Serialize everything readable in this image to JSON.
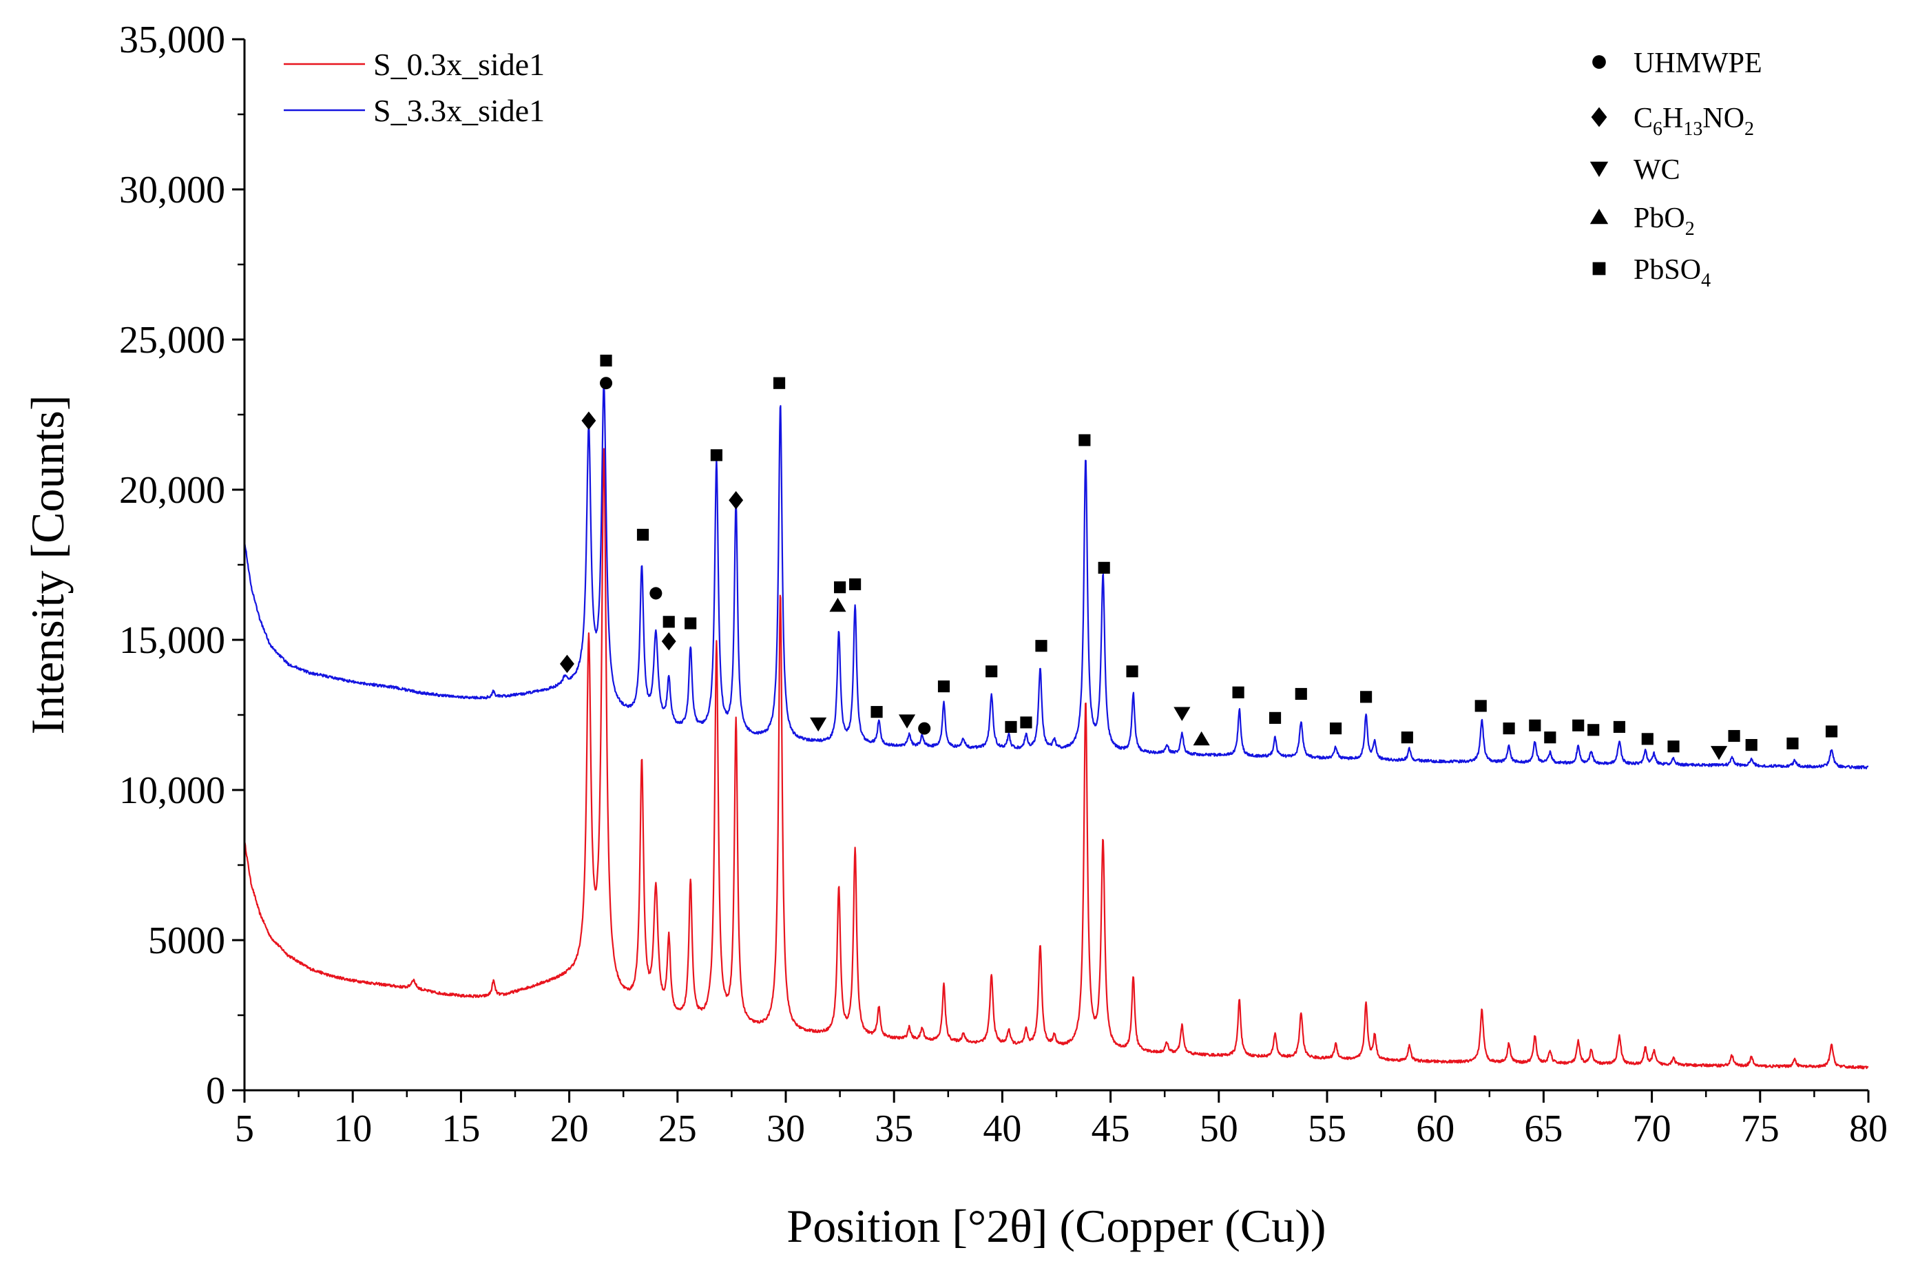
{
  "chart_data": {
    "type": "line",
    "title": "",
    "xlabel": "Position [°2θ] (Copper (Cu))",
    "ylabel": "Intensity [Counts]",
    "xlim": [
      5,
      80
    ],
    "ylim": [
      0,
      35000
    ],
    "x_ticks": [
      5,
      10,
      15,
      20,
      25,
      30,
      35,
      40,
      45,
      50,
      55,
      60,
      65,
      70,
      75,
      80
    ],
    "x_tick_labels": [
      "5",
      "10",
      "15",
      "20",
      "25",
      "30",
      "35",
      "40",
      "45",
      "50",
      "55",
      "60",
      "65",
      "70",
      "75",
      "80"
    ],
    "y_ticks": [
      0,
      5000,
      10000,
      15000,
      20000,
      25000,
      30000,
      35000
    ],
    "y_tick_labels": [
      "0",
      "5000",
      "10,000",
      "15,000",
      "20,000",
      "25,000",
      "30,000",
      "35,000"
    ],
    "grid": false,
    "legend_position": "top-left",
    "series": [
      {
        "name": "S_0.3x_side1",
        "color": "#e8141e",
        "baseline": [
          [
            5,
            8300
          ],
          [
            5.3,
            6900
          ],
          [
            5.7,
            5900
          ],
          [
            6.2,
            5100
          ],
          [
            7,
            4500
          ],
          [
            8,
            4050
          ],
          [
            9,
            3800
          ],
          [
            10,
            3650
          ],
          [
            11,
            3550
          ],
          [
            12,
            3450
          ],
          [
            13,
            3350
          ],
          [
            14,
            3220
          ],
          [
            15,
            3130
          ],
          [
            16,
            3100
          ],
          [
            17,
            3150
          ],
          [
            18,
            3350
          ],
          [
            19,
            3550
          ],
          [
            20,
            3720
          ],
          [
            20.6,
            3760
          ],
          [
            22,
            3000
          ],
          [
            25,
            2300
          ],
          [
            30,
            1900
          ],
          [
            35,
            1700
          ],
          [
            40,
            1500
          ],
          [
            45,
            1300
          ],
          [
            50,
            1150
          ],
          [
            55,
            1050
          ],
          [
            60,
            950
          ],
          [
            65,
            900
          ],
          [
            70,
            850
          ],
          [
            75,
            800
          ],
          [
            80,
            760
          ]
        ],
        "peaks": [
          [
            12.8,
            300,
            0.12
          ],
          [
            16.5,
            500,
            0.08
          ],
          [
            20.9,
            11000,
            0.12
          ],
          [
            21.6,
            17800,
            0.13
          ],
          [
            23.35,
            8100,
            0.1
          ],
          [
            24.0,
            4000,
            0.12
          ],
          [
            24.6,
            2500,
            0.09
          ],
          [
            25.6,
            4600,
            0.09
          ],
          [
            26.8,
            12600,
            0.1
          ],
          [
            27.7,
            10100,
            0.09
          ],
          [
            29.75,
            14600,
            0.1
          ],
          [
            32.45,
            4900,
            0.09
          ],
          [
            33.2,
            6200,
            0.09
          ],
          [
            34.3,
            1000,
            0.08
          ],
          [
            35.7,
            400,
            0.08
          ],
          [
            36.3,
            400,
            0.08
          ],
          [
            37.3,
            1900,
            0.08
          ],
          [
            38.2,
            300,
            0.08
          ],
          [
            39.5,
            2300,
            0.09
          ],
          [
            40.3,
            500,
            0.08
          ],
          [
            41.1,
            500,
            0.08
          ],
          [
            41.75,
            3400,
            0.09
          ],
          [
            42.4,
            350,
            0.08
          ],
          [
            43.85,
            11500,
            0.1
          ],
          [
            44.65,
            6900,
            0.1
          ],
          [
            46.05,
            2500,
            0.08
          ],
          [
            47.6,
            350,
            0.08
          ],
          [
            48.3,
            950,
            0.08
          ],
          [
            50.95,
            1900,
            0.08
          ],
          [
            52.6,
            800,
            0.08
          ],
          [
            53.8,
            1500,
            0.09
          ],
          [
            55.4,
            500,
            0.08
          ],
          [
            56.8,
            1900,
            0.08
          ],
          [
            57.2,
            800,
            0.08
          ],
          [
            58.8,
            500,
            0.08
          ],
          [
            62.15,
            1750,
            0.09
          ],
          [
            63.4,
            650,
            0.08
          ],
          [
            64.6,
            900,
            0.08
          ],
          [
            65.3,
            400,
            0.08
          ],
          [
            66.6,
            750,
            0.08
          ],
          [
            67.2,
            450,
            0.08
          ],
          [
            68.5,
            950,
            0.09
          ],
          [
            69.7,
            550,
            0.08
          ],
          [
            70.1,
            450,
            0.08
          ],
          [
            71.0,
            250,
            0.08
          ],
          [
            73.7,
            350,
            0.08
          ],
          [
            74.6,
            300,
            0.08
          ],
          [
            76.6,
            250,
            0.08
          ],
          [
            78.3,
            750,
            0.09
          ]
        ]
      },
      {
        "name": "S_3.3x_side1",
        "color": "#1414e0",
        "baseline": [
          [
            5,
            18300
          ],
          [
            5.3,
            16800
          ],
          [
            5.7,
            15700
          ],
          [
            6.2,
            14800
          ],
          [
            7,
            14200
          ],
          [
            8,
            13900
          ],
          [
            9,
            13750
          ],
          [
            10,
            13600
          ],
          [
            11,
            13500
          ],
          [
            12,
            13400
          ],
          [
            13,
            13250
          ],
          [
            14,
            13150
          ],
          [
            15,
            13080
          ],
          [
            16,
            13050
          ],
          [
            17,
            13100
          ],
          [
            18,
            13180
          ],
          [
            19,
            13300
          ],
          [
            20,
            13430
          ],
          [
            20.6,
            13500
          ],
          [
            22,
            12600
          ],
          [
            25,
            12000
          ],
          [
            30,
            11600
          ],
          [
            35,
            11450
          ],
          [
            40,
            11350
          ],
          [
            45,
            11250
          ],
          [
            50,
            11150
          ],
          [
            55,
            11050
          ],
          [
            60,
            10950
          ],
          [
            65,
            10900
          ],
          [
            70,
            10850
          ],
          [
            75,
            10800
          ],
          [
            80,
            10750
          ]
        ],
        "peaks": [
          [
            16.5,
            200,
            0.08
          ],
          [
            19.8,
            250,
            0.12
          ],
          [
            20.9,
            8500,
            0.12
          ],
          [
            21.6,
            10400,
            0.13
          ],
          [
            23.35,
            5000,
            0.1
          ],
          [
            24.0,
            2900,
            0.12
          ],
          [
            24.6,
            1500,
            0.09
          ],
          [
            25.6,
            2700,
            0.09
          ],
          [
            26.8,
            9000,
            0.1
          ],
          [
            27.7,
            7700,
            0.09
          ],
          [
            29.75,
            11200,
            0.1
          ],
          [
            32.45,
            3700,
            0.09
          ],
          [
            33.2,
            4600,
            0.09
          ],
          [
            34.3,
            800,
            0.08
          ],
          [
            35.7,
            400,
            0.08
          ],
          [
            36.3,
            400,
            0.08
          ],
          [
            37.3,
            1500,
            0.08
          ],
          [
            38.2,
            300,
            0.08
          ],
          [
            39.5,
            1800,
            0.09
          ],
          [
            40.3,
            450,
            0.08
          ],
          [
            41.1,
            450,
            0.08
          ],
          [
            41.75,
            2700,
            0.09
          ],
          [
            42.4,
            300,
            0.08
          ],
          [
            43.85,
            9700,
            0.1
          ],
          [
            44.65,
            5800,
            0.1
          ],
          [
            46.05,
            1950,
            0.08
          ],
          [
            47.6,
            300,
            0.08
          ],
          [
            48.3,
            700,
            0.08
          ],
          [
            50.95,
            1550,
            0.08
          ],
          [
            52.6,
            650,
            0.08
          ],
          [
            53.8,
            1200,
            0.09
          ],
          [
            55.4,
            400,
            0.08
          ],
          [
            56.8,
            1500,
            0.08
          ],
          [
            57.2,
            600,
            0.08
          ],
          [
            58.8,
            400,
            0.08
          ],
          [
            62.15,
            1400,
            0.09
          ],
          [
            63.4,
            550,
            0.08
          ],
          [
            64.6,
            700,
            0.08
          ],
          [
            65.3,
            350,
            0.08
          ],
          [
            66.6,
            600,
            0.08
          ],
          [
            67.2,
            400,
            0.08
          ],
          [
            68.5,
            750,
            0.09
          ],
          [
            69.7,
            450,
            0.08
          ],
          [
            70.1,
            350,
            0.08
          ],
          [
            71.0,
            200,
            0.08
          ],
          [
            73.7,
            300,
            0.08
          ],
          [
            74.6,
            250,
            0.08
          ],
          [
            76.6,
            200,
            0.08
          ],
          [
            78.3,
            600,
            0.09
          ]
        ]
      }
    ],
    "phase_legend": [
      {
        "marker": "circle",
        "label": "UHMWPE",
        "sub_parts": []
      },
      {
        "marker": "diamond",
        "label": "C6H13NO2",
        "sub_parts": [
          [
            "C",
            false
          ],
          [
            "6",
            true
          ],
          [
            "H",
            false
          ],
          [
            "13",
            true
          ],
          [
            "NO",
            false
          ],
          [
            "2",
            true
          ]
        ]
      },
      {
        "marker": "triangle-down",
        "label": "WC",
        "sub_parts": []
      },
      {
        "marker": "triangle-up",
        "label": "PbO2",
        "sub_parts": [
          [
            "PbO",
            false
          ],
          [
            "2",
            true
          ]
        ]
      },
      {
        "marker": "square",
        "label": "PbSO4",
        "sub_parts": [
          [
            "PbSO",
            false
          ],
          [
            "4",
            true
          ]
        ]
      }
    ],
    "phase_markers": [
      {
        "marker": "diamond",
        "x": 19.9,
        "y": 14200
      },
      {
        "marker": "diamond",
        "x": 20.9,
        "y": 22300
      },
      {
        "marker": "square",
        "x": 21.7,
        "y": 24300
      },
      {
        "marker": "circle",
        "x": 21.7,
        "y": 23550
      },
      {
        "marker": "square",
        "x": 23.4,
        "y": 18500
      },
      {
        "marker": "circle",
        "x": 24.0,
        "y": 16550
      },
      {
        "marker": "square",
        "x": 24.6,
        "y": 15600
      },
      {
        "marker": "diamond",
        "x": 24.6,
        "y": 14950
      },
      {
        "marker": "square",
        "x": 25.6,
        "y": 15550
      },
      {
        "marker": "square",
        "x": 26.8,
        "y": 21150
      },
      {
        "marker": "diamond",
        "x": 27.7,
        "y": 19650
      },
      {
        "marker": "square",
        "x": 29.7,
        "y": 23550
      },
      {
        "marker": "triangle-down",
        "x": 31.5,
        "y": 12200
      },
      {
        "marker": "square",
        "x": 32.5,
        "y": 16750
      },
      {
        "marker": "triangle-up",
        "x": 32.4,
        "y": 16150
      },
      {
        "marker": "square",
        "x": 33.2,
        "y": 16850
      },
      {
        "marker": "square",
        "x": 34.2,
        "y": 12600
      },
      {
        "marker": "triangle-down",
        "x": 35.6,
        "y": 12300
      },
      {
        "marker": "circle",
        "x": 36.4,
        "y": 12050
      },
      {
        "marker": "square",
        "x": 37.3,
        "y": 13450
      },
      {
        "marker": "square",
        "x": 39.5,
        "y": 13950
      },
      {
        "marker": "square",
        "x": 40.4,
        "y": 12100
      },
      {
        "marker": "square",
        "x": 41.1,
        "y": 12250
      },
      {
        "marker": "square",
        "x": 41.8,
        "y": 14800
      },
      {
        "marker": "square",
        "x": 43.8,
        "y": 21650
      },
      {
        "marker": "square",
        "x": 44.7,
        "y": 17400
      },
      {
        "marker": "square",
        "x": 46.0,
        "y": 13950
      },
      {
        "marker": "triangle-down",
        "x": 48.3,
        "y": 12550
      },
      {
        "marker": "triangle-up",
        "x": 49.2,
        "y": 11700
      },
      {
        "marker": "square",
        "x": 50.9,
        "y": 13250
      },
      {
        "marker": "square",
        "x": 52.6,
        "y": 12400
      },
      {
        "marker": "square",
        "x": 53.8,
        "y": 13200
      },
      {
        "marker": "square",
        "x": 55.4,
        "y": 12050
      },
      {
        "marker": "square",
        "x": 56.8,
        "y": 13100
      },
      {
        "marker": "square",
        "x": 58.7,
        "y": 11750
      },
      {
        "marker": "square",
        "x": 62.1,
        "y": 12800
      },
      {
        "marker": "square",
        "x": 63.4,
        "y": 12050
      },
      {
        "marker": "square",
        "x": 64.6,
        "y": 12150
      },
      {
        "marker": "square",
        "x": 65.3,
        "y": 11750
      },
      {
        "marker": "square",
        "x": 66.6,
        "y": 12150
      },
      {
        "marker": "square",
        "x": 67.3,
        "y": 12000
      },
      {
        "marker": "square",
        "x": 68.5,
        "y": 12100
      },
      {
        "marker": "square",
        "x": 69.8,
        "y": 11700
      },
      {
        "marker": "square",
        "x": 71.0,
        "y": 11450
      },
      {
        "marker": "triangle-down",
        "x": 73.1,
        "y": 11250
      },
      {
        "marker": "square",
        "x": 73.8,
        "y": 11800
      },
      {
        "marker": "square",
        "x": 74.6,
        "y": 11500
      },
      {
        "marker": "square",
        "x": 76.5,
        "y": 11550
      },
      {
        "marker": "square",
        "x": 78.3,
        "y": 11950
      }
    ]
  }
}
